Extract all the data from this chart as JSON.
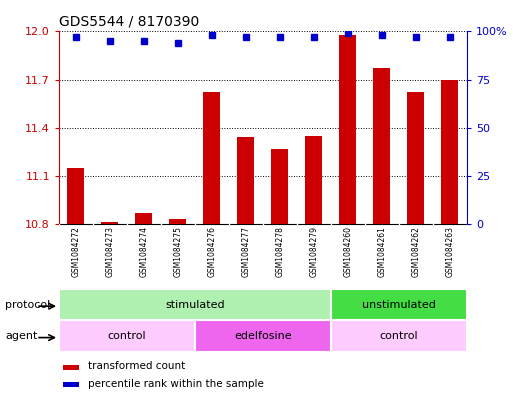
{
  "title": "GDS5544 / 8170390",
  "samples": [
    "GSM1084272",
    "GSM1084273",
    "GSM1084274",
    "GSM1084275",
    "GSM1084276",
    "GSM1084277",
    "GSM1084278",
    "GSM1084279",
    "GSM1084260",
    "GSM1084261",
    "GSM1084262",
    "GSM1084263"
  ],
  "transformed_count": [
    11.15,
    10.81,
    10.87,
    10.83,
    11.62,
    11.34,
    11.27,
    11.35,
    11.98,
    11.77,
    11.62,
    11.7
  ],
  "percentile_rank": [
    97,
    95,
    95,
    94,
    98,
    97,
    97,
    97,
    99,
    98,
    97,
    97
  ],
  "ylim_left": [
    10.8,
    12.0
  ],
  "ylim_right": [
    0,
    100
  ],
  "yticks_left": [
    10.8,
    11.1,
    11.4,
    11.7,
    12.0
  ],
  "yticks_right": [
    0,
    25,
    50,
    75,
    100
  ],
  "bar_color": "#cc0000",
  "dot_color": "#0000cc",
  "bar_bottom": 10.8,
  "protocol_groups": [
    {
      "label": "stimulated",
      "start": 0,
      "end": 8,
      "color": "#b0f0b0"
    },
    {
      "label": "unstimulated",
      "start": 8,
      "end": 12,
      "color": "#44dd44"
    }
  ],
  "agent_groups": [
    {
      "label": "control",
      "start": 0,
      "end": 4,
      "color": "#ffccff"
    },
    {
      "label": "edelfosine",
      "start": 4,
      "end": 8,
      "color": "#ee66ee"
    },
    {
      "label": "control",
      "start": 8,
      "end": 12,
      "color": "#ffccff"
    }
  ],
  "legend_items": [
    {
      "label": "transformed count",
      "color": "#cc0000",
      "marker": "s"
    },
    {
      "label": "percentile rank within the sample",
      "color": "#0000cc",
      "marker": "s"
    }
  ],
  "title_fontsize": 10,
  "tick_fontsize": 8,
  "sample_fontsize": 5.5,
  "label_fontsize": 8,
  "axis_label_color_left": "#cc0000",
  "axis_label_color_right": "#0000cc",
  "background_color": "#ffffff",
  "sample_bg_color": "#c8c8c8",
  "sample_border_color": "#aaaaaa"
}
